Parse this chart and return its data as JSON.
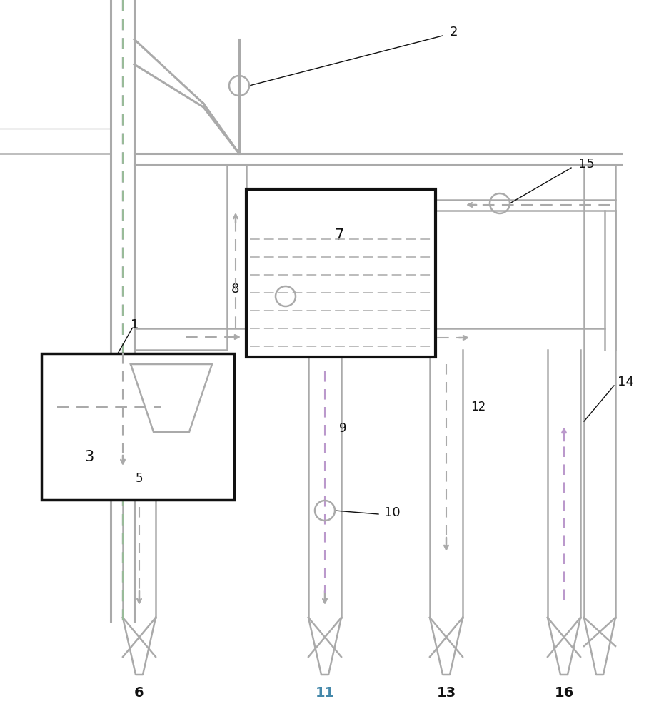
{
  "bg_color": "#ffffff",
  "lc": "#aaaaaa",
  "lc_dark": "#888888",
  "black": "#111111",
  "dashed_gray": "#aaaaaa",
  "dashed_purple": "#bb99cc",
  "dashed_green": "#99bb99",
  "teal": "#4488aa",
  "figsize": [
    9.16,
    10.0
  ],
  "dpi": 100
}
